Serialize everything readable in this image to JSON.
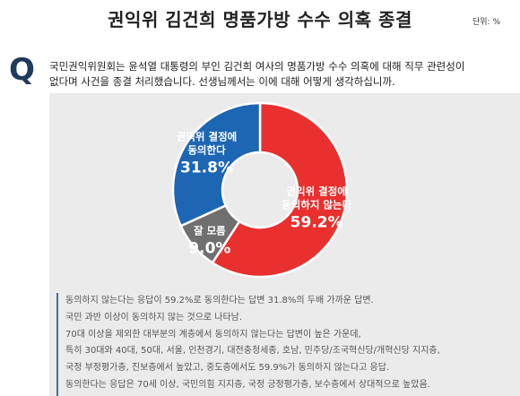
{
  "title": "권익위 김건희 명품가방 수수 의혹 종결",
  "unit": "단위: %",
  "question": {
    "mark": "Q",
    "lines": [
      "국민권익위원회는 윤석열 대통령의 부인 김건희 여사의 명품가방 수수 의혹에 대해 직무 관련성이",
      "없다며 사건을 종결 처리했습니다. 선생님께서는 이에 대해 어떻게 생각하십니까."
    ]
  },
  "chart_data": {
    "type": "pie",
    "subtype": "donut",
    "slices": [
      {
        "label_lines": [
          "권익위 결정에",
          "동의하지 않는다"
        ],
        "value": 59.2,
        "value_label": "59.2%",
        "color": "#e8302f"
      },
      {
        "label_lines": [
          "잘 모름"
        ],
        "value": 9.0,
        "value_label": "9.0%",
        "color": "#6f6f6f"
      },
      {
        "label_lines": [
          "권익위 결정에",
          "동의한다"
        ],
        "value": 31.8,
        "value_label": "31.8%",
        "color": "#1d66b3"
      }
    ]
  },
  "notes": [
    "동의하지 않는다는 응답이 59.2%로 동의한다는 답변 31.8%의 두배 가까운 답변.",
    "국민 과반 이상이 동의하지 않는 것으로 나타남.",
    "70대 이상을 제외한 대부분의 계층에서 동의하지 않는다는 답변이 높은 가운데,",
    "특히 30대와 40대, 50대, 서울, 인천경기, 대전충청세종, 호남, 민주당/조국혁신당/개혁신당 지지층,",
    "국정 부정평가층, 진보층에서 높았고, 중도층에서도 59.9%가 동의하지 않는다고 응답.",
    "동의한다는 응답은 70세 이상, 국민의힘 지지층, 국정 긍정평가층, 보수층에서 상대적으로 높았음."
  ]
}
